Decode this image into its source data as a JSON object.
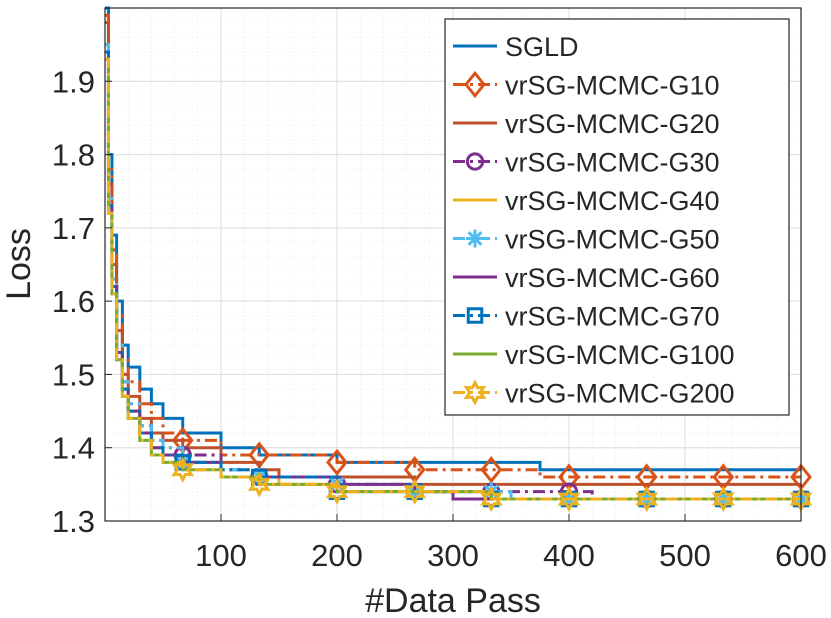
{
  "chart_data": {
    "type": "line",
    "title": "",
    "xlabel": "#Data Pass",
    "ylabel": "Loss",
    "xlim": [
      0,
      600
    ],
    "ylim": [
      1.3,
      2.0
    ],
    "xticks": [
      "100",
      "200",
      "300",
      "400",
      "500",
      "600"
    ],
    "yticks": [
      "1.3",
      "1.4",
      "1.5",
      "1.6",
      "1.7",
      "1.8",
      "1.9"
    ],
    "grid": true,
    "legend_position": "top-right",
    "series": [
      {
        "name": "SGLD",
        "color": "#0072BD",
        "marker": "none",
        "dash": "solid",
        "x": [
          0,
          3,
          6,
          10,
          15,
          20,
          30,
          40,
          50,
          67,
          100,
          133,
          200,
          267,
          333,
          375,
          400,
          500,
          600
        ],
        "y": [
          2.0,
          1.8,
          1.69,
          1.6,
          1.54,
          1.51,
          1.48,
          1.46,
          1.44,
          1.42,
          1.4,
          1.39,
          1.38,
          1.38,
          1.38,
          1.37,
          1.37,
          1.37,
          1.37
        ]
      },
      {
        "name": "vrSG-MCMC-G10",
        "color": "#D95319",
        "marker": "diamond",
        "dash": "dashdot",
        "x": [
          0,
          3,
          6,
          10,
          15,
          20,
          30,
          40,
          50,
          67,
          100,
          133,
          200,
          267,
          333,
          375,
          400,
          500,
          600
        ],
        "y": [
          1.99,
          1.78,
          1.67,
          1.58,
          1.52,
          1.49,
          1.46,
          1.44,
          1.42,
          1.41,
          1.39,
          1.39,
          1.38,
          1.37,
          1.37,
          1.36,
          1.36,
          1.36,
          1.36
        ]
      },
      {
        "name": "vrSG-MCMC-G20",
        "color": "#C0502A",
        "marker": "none",
        "dash": "solid",
        "x": [
          0,
          3,
          6,
          10,
          15,
          20,
          30,
          40,
          50,
          67,
          100,
          133,
          150,
          200,
          267,
          333,
          400,
          500,
          600
        ],
        "y": [
          1.98,
          1.76,
          1.65,
          1.56,
          1.5,
          1.47,
          1.44,
          1.42,
          1.41,
          1.4,
          1.38,
          1.37,
          1.36,
          1.36,
          1.35,
          1.35,
          1.35,
          1.35,
          1.35
        ]
      },
      {
        "name": "vrSG-MCMC-G30",
        "color": "#7E2F8E",
        "marker": "circle",
        "dash": "dashdot",
        "x": [
          0,
          3,
          6,
          10,
          15,
          20,
          30,
          40,
          50,
          67,
          100,
          133,
          200,
          267,
          333,
          400,
          420,
          500,
          600
        ],
        "y": [
          1.95,
          1.74,
          1.63,
          1.54,
          1.49,
          1.46,
          1.43,
          1.41,
          1.4,
          1.39,
          1.37,
          1.36,
          1.35,
          1.34,
          1.34,
          1.34,
          1.33,
          1.33,
          1.33
        ]
      },
      {
        "name": "vrSG-MCMC-G40",
        "color": "#EDB120",
        "marker": "none",
        "dash": "solid",
        "x": [
          0,
          3,
          6,
          10,
          15,
          20,
          30,
          40,
          50,
          67,
          100,
          133,
          150,
          200,
          267,
          333,
          400,
          500,
          600
        ],
        "y": [
          1.94,
          1.73,
          1.62,
          1.53,
          1.48,
          1.45,
          1.42,
          1.4,
          1.39,
          1.38,
          1.36,
          1.36,
          1.35,
          1.34,
          1.34,
          1.33,
          1.33,
          1.33,
          1.33
        ]
      },
      {
        "name": "vrSG-MCMC-G50",
        "color": "#4DBEEE",
        "marker": "star",
        "dash": "dashdot",
        "x": [
          0,
          3,
          6,
          10,
          15,
          20,
          30,
          40,
          50,
          67,
          100,
          133,
          200,
          267,
          333,
          350,
          400,
          500,
          600
        ],
        "y": [
          1.95,
          1.74,
          1.63,
          1.54,
          1.49,
          1.46,
          1.43,
          1.41,
          1.4,
          1.38,
          1.37,
          1.36,
          1.35,
          1.34,
          1.34,
          1.33,
          1.33,
          1.33,
          1.33
        ]
      },
      {
        "name": "vrSG-MCMC-G60",
        "color": "#7E2F8E",
        "marker": "none",
        "dash": "solid",
        "x": [
          0,
          3,
          6,
          10,
          15,
          20,
          30,
          40,
          50,
          67,
          100,
          133,
          200,
          267,
          300,
          333,
          400,
          500,
          600
        ],
        "y": [
          1.94,
          1.73,
          1.62,
          1.53,
          1.48,
          1.45,
          1.42,
          1.4,
          1.39,
          1.38,
          1.36,
          1.36,
          1.35,
          1.34,
          1.33,
          1.33,
          1.33,
          1.33,
          1.33
        ]
      },
      {
        "name": "vrSG-MCMC-G70",
        "color": "#0072BD",
        "marker": "square",
        "dash": "dashdot",
        "x": [
          0,
          3,
          6,
          10,
          15,
          20,
          30,
          40,
          50,
          67,
          100,
          133,
          200,
          267,
          333,
          400,
          500,
          600
        ],
        "y": [
          1.94,
          1.73,
          1.62,
          1.53,
          1.48,
          1.45,
          1.42,
          1.4,
          1.39,
          1.38,
          1.37,
          1.36,
          1.34,
          1.34,
          1.33,
          1.33,
          1.33,
          1.33
        ]
      },
      {
        "name": "vrSG-MCMC-G100",
        "color": "#77AC30",
        "marker": "none",
        "dash": "solid",
        "x": [
          0,
          3,
          6,
          10,
          15,
          20,
          30,
          40,
          50,
          67,
          100,
          133,
          200,
          267,
          333,
          400,
          500,
          600
        ],
        "y": [
          1.93,
          1.72,
          1.61,
          1.52,
          1.47,
          1.44,
          1.41,
          1.39,
          1.38,
          1.37,
          1.36,
          1.35,
          1.34,
          1.34,
          1.33,
          1.33,
          1.33,
          1.33
        ]
      },
      {
        "name": "vrSG-MCMC-G200",
        "color": "#EDB120",
        "marker": "hexagram",
        "dash": "dashdot",
        "x": [
          0,
          3,
          6,
          10,
          15,
          20,
          30,
          40,
          50,
          67,
          100,
          133,
          200,
          267,
          333,
          400,
          500,
          600
        ],
        "y": [
          1.93,
          1.72,
          1.61,
          1.52,
          1.47,
          1.44,
          1.41,
          1.39,
          1.38,
          1.37,
          1.36,
          1.35,
          1.34,
          1.34,
          1.33,
          1.33,
          1.33,
          1.33
        ]
      }
    ]
  }
}
